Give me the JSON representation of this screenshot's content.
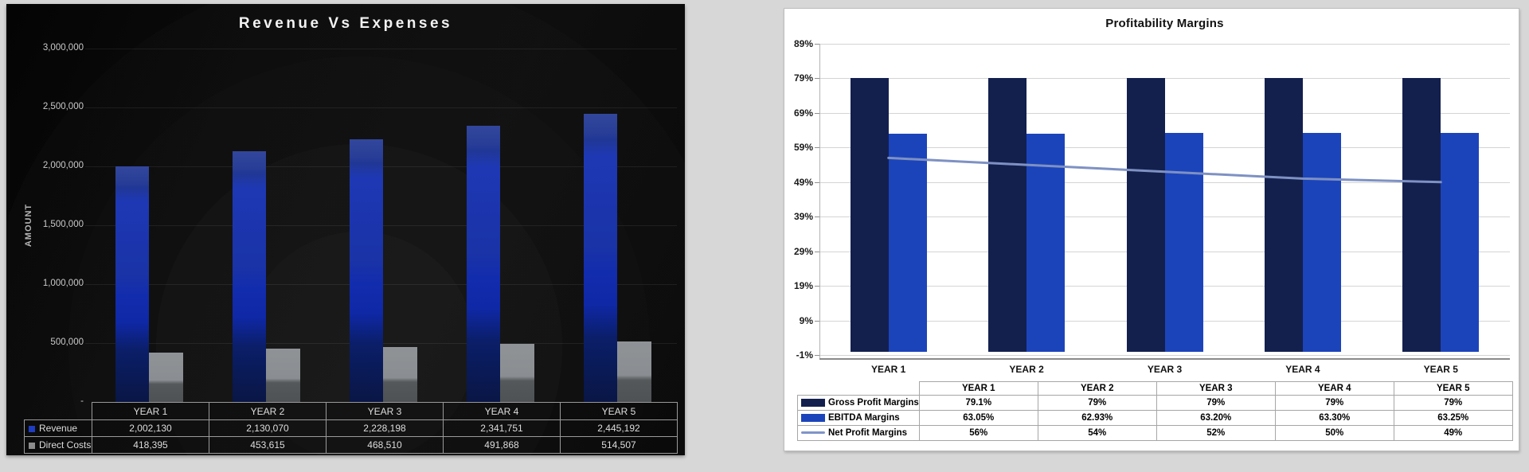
{
  "page": {
    "background": "#d7d7d7"
  },
  "chart_data": [
    {
      "type": "bar",
      "title": "Revenue Vs Expenses",
      "theme": "dark",
      "y_axis": {
        "title": "AMOUNT",
        "min": 0,
        "max": 3000000,
        "ticks": [
          {
            "label": "3,000,000",
            "value": 3000000
          },
          {
            "label": "2,500,000",
            "value": 2500000
          },
          {
            "label": "2,000,000",
            "value": 2000000
          },
          {
            "label": "1,500,000",
            "value": 1500000
          },
          {
            "label": "1,000,000",
            "value": 1000000
          },
          {
            "label": "500,000",
            "value": 500000
          },
          {
            "label": "-",
            "value": 0
          }
        ]
      },
      "categories": [
        "YEAR 1",
        "YEAR 2",
        "YEAR 3",
        "YEAR 4",
        "YEAR 5"
      ],
      "series": [
        {
          "name": "Revenue",
          "type": "bar",
          "swatch_color": "#1f3dc0",
          "values": [
            2002130,
            2130070,
            2228198,
            2341751,
            2445192
          ],
          "labels": [
            "2,002,130",
            "2,130,070",
            "2,228,198",
            "2,341,751",
            "2,445,192"
          ]
        },
        {
          "name": "Direct Costs",
          "type": "bar",
          "swatch_color": "#8c8c8c",
          "values": [
            418395,
            453615,
            468510,
            491868,
            514507
          ],
          "labels": [
            "418,395",
            "453,615",
            "468,510",
            "491,868",
            "514,507"
          ]
        }
      ],
      "legend_position": "table-left",
      "grid": true
    },
    {
      "type": "bar",
      "title": "Profitability Margins",
      "theme": "light",
      "y_axis": {
        "title": "",
        "min": -1,
        "max": 89,
        "ticks": [
          {
            "label": "89%",
            "value": 89
          },
          {
            "label": "79%",
            "value": 79
          },
          {
            "label": "69%",
            "value": 69
          },
          {
            "label": "59%",
            "value": 59
          },
          {
            "label": "49%",
            "value": 49
          },
          {
            "label": "39%",
            "value": 39
          },
          {
            "label": "29%",
            "value": 29
          },
          {
            "label": "19%",
            "value": 19
          },
          {
            "label": "9%",
            "value": 9
          },
          {
            "label": "-1%",
            "value": -1
          }
        ]
      },
      "categories": [
        "YEAR 1",
        "YEAR 2",
        "YEAR 3",
        "YEAR 4",
        "YEAR 5"
      ],
      "series": [
        {
          "name": "Gross Profit Margins",
          "type": "bar",
          "color": "#13204e",
          "swatch_color": "#13204e",
          "values": [
            79.1,
            79,
            79,
            79,
            79
          ],
          "labels": [
            "79.1%",
            "79%",
            "79%",
            "79%",
            "79%"
          ]
        },
        {
          "name": "EBITDA Margins",
          "type": "bar",
          "color": "#1c44ba",
          "swatch_color": "#1c44ba",
          "values": [
            63.05,
            62.93,
            63.2,
            63.3,
            63.25
          ],
          "labels": [
            "63.05%",
            "62.93%",
            "63.20%",
            "63.30%",
            "63.25%"
          ]
        },
        {
          "name": "Net Profit Margins",
          "type": "line",
          "color": "#7e91c3",
          "swatch_color": "#8094c8",
          "values": [
            56,
            54,
            52,
            50,
            49
          ],
          "labels": [
            "56%",
            "54%",
            "52%",
            "50%",
            "49%"
          ]
        }
      ],
      "legend_position": "table-left",
      "grid": true
    }
  ]
}
